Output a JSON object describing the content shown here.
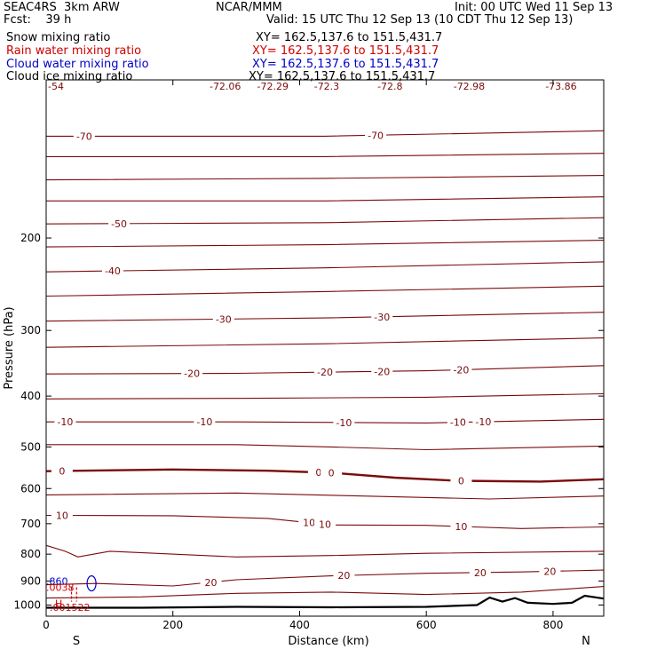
{
  "header": {
    "model": "SEAC4RS  3km ARW",
    "center": "NCAR/MMM",
    "init": "Init: 00 UTC Wed 11 Sep 13",
    "fcst": "Fcst:    39 h",
    "valid": "Valid: 15 UTC Thu 12 Sep 13 (10 CDT Thu 12 Sep 13)"
  },
  "fields": [
    {
      "name": "Snow mixing ratio",
      "xy": "XY= 162.5,137.6 to 151.5,431.7",
      "color": "#000000"
    },
    {
      "name": "Rain water mixing ratio",
      "xy": "XY= 162.5,137.6 to 151.5,431.7",
      "color": "#d00000"
    },
    {
      "name": "Cloud water mixing ratio",
      "xy": "XY= 162.5,137.6 to 151.5,431.7",
      "color": "#0000cc"
    },
    {
      "name": "Cloud ice mixing ratio",
      "xy": "XY= 162.5,137.6 to 151.5,431.7",
      "color": "#000000"
    }
  ],
  "chart_data": {
    "type": "line",
    "xlabel": "Distance (km)",
    "ylabel": "Pressure (hPa)",
    "xlim": [
      0,
      880
    ],
    "ylim": [
      1050,
      100
    ],
    "y_scale": "log",
    "xticks": [
      0,
      200,
      400,
      600,
      800
    ],
    "yticks": [
      200,
      300,
      400,
      500,
      600,
      700,
      800,
      900,
      1000
    ],
    "end_labels": {
      "left": "S",
      "right": "N"
    },
    "contour_color": "#7a0a0a",
    "isotherms": [
      {
        "value": -70,
        "label": "-70",
        "points": [
          [
            0,
            128
          ],
          [
            440,
            128
          ],
          [
            880,
            125
          ]
        ],
        "labels_at": [
          60,
          520
        ]
      },
      {
        "value": -65,
        "label": "",
        "points": [
          [
            0,
            140
          ],
          [
            440,
            140
          ],
          [
            880,
            138
          ]
        ],
        "labels_at": []
      },
      {
        "value": -60,
        "label": "",
        "points": [
          [
            0,
            155
          ],
          [
            440,
            154
          ],
          [
            880,
            152
          ]
        ],
        "labels_at": []
      },
      {
        "value": -55,
        "label": "",
        "points": [
          [
            0,
            170
          ],
          [
            440,
            170
          ],
          [
            880,
            167
          ]
        ],
        "labels_at": []
      },
      {
        "value": -50,
        "label": "-50",
        "points": [
          [
            0,
            188
          ],
          [
            440,
            187
          ],
          [
            880,
            183
          ]
        ],
        "labels_at": [
          115
        ]
      },
      {
        "value": -45,
        "label": "",
        "points": [
          [
            0,
            208
          ],
          [
            440,
            206
          ],
          [
            880,
            202
          ]
        ],
        "labels_at": []
      },
      {
        "value": -40,
        "label": "-40",
        "points": [
          [
            0,
            232
          ],
          [
            440,
            228
          ],
          [
            880,
            222
          ]
        ],
        "labels_at": [
          105
        ]
      },
      {
        "value": -35,
        "label": "",
        "points": [
          [
            0,
            258
          ],
          [
            440,
            253
          ],
          [
            880,
            247
          ]
        ],
        "labels_at": []
      },
      {
        "value": -30,
        "label": "-30",
        "points": [
          [
            0,
            288
          ],
          [
            440,
            284
          ],
          [
            880,
            277
          ]
        ],
        "labels_at": [
          280,
          530
        ]
      },
      {
        "value": -25,
        "label": "",
        "points": [
          [
            0,
            323
          ],
          [
            440,
            318
          ],
          [
            880,
            310
          ]
        ],
        "labels_at": []
      },
      {
        "value": -20,
        "label": "-20",
        "points": [
          [
            0,
            363
          ],
          [
            300,
            362
          ],
          [
            600,
            358
          ],
          [
            880,
            350
          ]
        ],
        "labels_at": [
          230,
          440,
          530,
          655
        ]
      },
      {
        "value": -15,
        "label": "",
        "points": [
          [
            0,
            405
          ],
          [
            300,
            404
          ],
          [
            600,
            402
          ],
          [
            880,
            396
          ]
        ],
        "labels_at": []
      },
      {
        "value": -10,
        "label": "-10",
        "points": [
          [
            0,
            448
          ],
          [
            300,
            448
          ],
          [
            600,
            450
          ],
          [
            880,
            443
          ]
        ],
        "labels_at": [
          30,
          250,
          470,
          650,
          690
        ]
      },
      {
        "value": -5,
        "label": "",
        "points": [
          [
            0,
            495
          ],
          [
            300,
            495
          ],
          [
            450,
            500
          ],
          [
            600,
            506
          ],
          [
            880,
            498
          ]
        ],
        "labels_at": []
      },
      {
        "value": 0,
        "label": "0",
        "bold": true,
        "points": [
          [
            0,
            556
          ],
          [
            200,
            552
          ],
          [
            350,
            555
          ],
          [
            450,
            560
          ],
          [
            550,
            572
          ],
          [
            650,
            580
          ],
          [
            780,
            582
          ],
          [
            880,
            576
          ]
        ],
        "labels_at": [
          25,
          430,
          450,
          655
        ]
      },
      {
        "value": 5,
        "label": "",
        "points": [
          [
            0,
            617
          ],
          [
            300,
            612
          ],
          [
            500,
            620
          ],
          [
            700,
            628
          ],
          [
            880,
            620
          ]
        ],
        "labels_at": []
      },
      {
        "value": 10,
        "label": "10",
        "points": [
          [
            0,
            675
          ],
          [
            200,
            676
          ],
          [
            350,
            684
          ],
          [
            450,
            704
          ],
          [
            600,
            705
          ],
          [
            750,
            715
          ],
          [
            880,
            710
          ]
        ],
        "labels_at": [
          25,
          415,
          440,
          655
        ]
      },
      {
        "value": 15,
        "label": "",
        "points": [
          [
            0,
            770
          ],
          [
            30,
            790
          ],
          [
            50,
            810
          ],
          [
            100,
            790
          ],
          [
            300,
            810
          ],
          [
            450,
            805
          ],
          [
            600,
            797
          ],
          [
            880,
            790
          ]
        ],
        "labels_at": []
      },
      {
        "value": 20,
        "label": "20",
        "points": [
          [
            0,
            915
          ],
          [
            80,
            910
          ],
          [
            200,
            920
          ],
          [
            300,
            895
          ],
          [
            450,
            880
          ],
          [
            600,
            870
          ],
          [
            750,
            865
          ],
          [
            880,
            858
          ]
        ],
        "labels_at": [
          260,
          470,
          685,
          795
        ]
      },
      {
        "value": 25,
        "label": "",
        "points": [
          [
            0,
            970
          ],
          [
            150,
            965
          ],
          [
            300,
            950
          ],
          [
            450,
            945
          ],
          [
            600,
            955
          ],
          [
            750,
            945
          ],
          [
            880,
            922
          ]
        ],
        "labels_at": []
      }
    ],
    "snow_field_labels": [
      "-54",
      "-72.06",
      "-72.29",
      "-72.3",
      "-72.8",
      "-72.98",
      "-73.86"
    ],
    "surface_pressure": [
      [
        0,
        1012
      ],
      [
        150,
        1012
      ],
      [
        300,
        1008
      ],
      [
        450,
        1010
      ],
      [
        600,
        1008
      ],
      [
        680,
        1000
      ],
      [
        700,
        968
      ],
      [
        720,
        985
      ],
      [
        740,
        970
      ],
      [
        760,
        990
      ],
      [
        800,
        995
      ],
      [
        830,
        990
      ],
      [
        850,
        960
      ],
      [
        880,
        972
      ]
    ],
    "cloud_water": {
      "label": ".860",
      "contour_x": [
        60,
        72
      ],
      "pressure_range": [
        880,
        940
      ]
    },
    "rain_water": {
      "label": ".0038",
      "label_max": "H",
      "max_value": ".001522"
    }
  }
}
